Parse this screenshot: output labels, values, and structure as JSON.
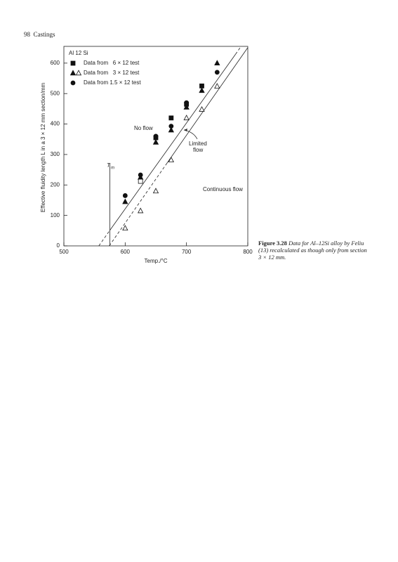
{
  "header": {
    "page": "98",
    "title": "Castings"
  },
  "chart_data": {
    "type": "scatter",
    "legend_title": "Al 12 Si",
    "xlabel": "Temp./°C",
    "ylabel": "Effective fluidity length L in a 3 × 12 mm section/mm",
    "xlim": [
      500,
      800
    ],
    "ylim": [
      0,
      655
    ],
    "xticks": [
      500,
      600,
      700,
      800
    ],
    "yticks": [
      0,
      100,
      200,
      300,
      400,
      500,
      600
    ],
    "series": [
      {
        "name": "Data from   6 × 12 test",
        "marker": "square",
        "filled": true,
        "color": "#111111",
        "x": [
          650,
          675,
          700,
          725
        ],
        "values": [
          355,
          420,
          465,
          525
        ]
      },
      {
        "name": "Data from   3 × 12 test",
        "marker": "triangle",
        "filled": true,
        "color": "#111111",
        "x": [
          600,
          625,
          650,
          675,
          700,
          725,
          750
        ],
        "values": [
          145,
          225,
          340,
          380,
          455,
          510,
          600
        ]
      },
      {
        "name": "Data from 1.5 × 12 test",
        "marker": "circle",
        "filled": true,
        "color": "#111111",
        "x": [
          600,
          625,
          650,
          675,
          700,
          750
        ],
        "values": [
          165,
          233,
          360,
          393,
          470,
          570
        ]
      },
      {
        "marker": "triangle",
        "filled": false,
        "color": "#111111",
        "x": [
          600,
          625,
          650,
          675,
          700,
          725,
          750
        ],
        "values": [
          58,
          115,
          180,
          282,
          420,
          448,
          524
        ]
      },
      {
        "marker": "square",
        "filled": false,
        "color": "#111111",
        "x": [
          625
        ],
        "values": [
          212
        ]
      }
    ],
    "lines": [
      {
        "dash": true,
        "x": [
          557,
          575
        ],
        "values": [
          0,
          51
        ]
      },
      {
        "dash": false,
        "x": [
          575,
          780
        ],
        "values": [
          51,
          629
        ]
      },
      {
        "dash": true,
        "x": [
          780,
          789
        ],
        "values": [
          629,
          655
        ]
      },
      {
        "dash": true,
        "x": [
          574,
          668
        ],
        "values": [
          0,
          271
        ]
      },
      {
        "dash": false,
        "x": [
          668,
          800
        ],
        "values": [
          271,
          651
        ]
      },
      {
        "dash": false,
        "x": [
          575,
          575
        ],
        "values": [
          0,
          270
        ]
      }
    ],
    "annotations": {
      "tm": "T",
      "tm_sub": "m",
      "no_flow": "No flow",
      "limited_flow": [
        "Limited",
        "flow"
      ],
      "continuous_flow": "Continuous flow"
    }
  },
  "caption": {
    "label": "Figure 3.28",
    "text": "Data for Al–12Si alloy by Feliu (13) recalculated as though only from section 3 × 12 mm."
  }
}
